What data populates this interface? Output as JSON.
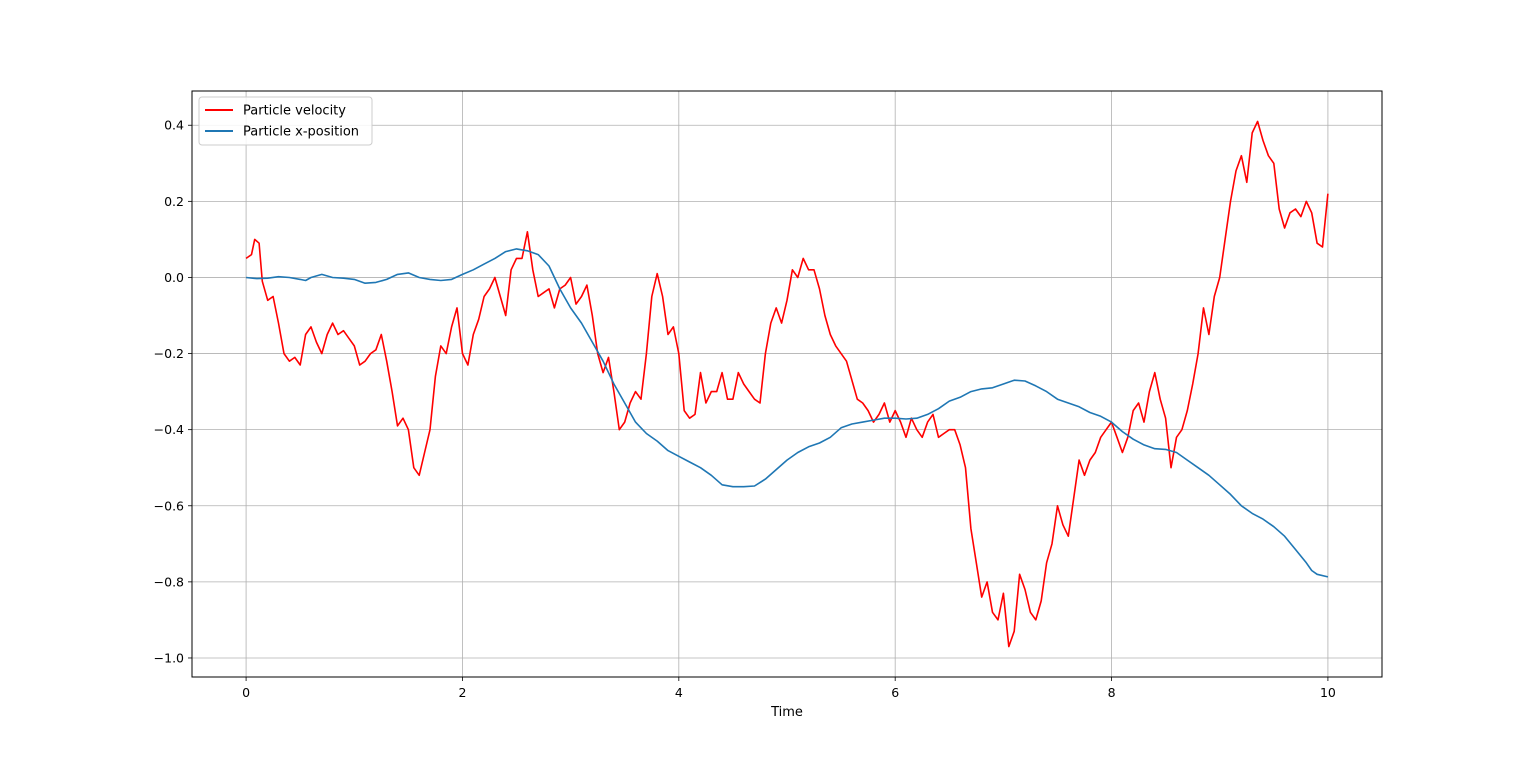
{
  "chart_data": {
    "type": "line",
    "title": "",
    "xlabel": "Time",
    "ylabel": "",
    "xlim": [
      -0.5,
      10.5
    ],
    "ylim": [
      -1.05,
      0.49
    ],
    "grid": true,
    "legend_position": "top-left",
    "xticks": [
      0,
      2,
      4,
      6,
      8,
      10
    ],
    "xtick_labels": [
      "0",
      "2",
      "4",
      "6",
      "8",
      "10"
    ],
    "yticks": [
      0.4,
      0.2,
      0.0,
      -0.2,
      -0.4,
      -0.6,
      -0.8,
      -1.0
    ],
    "ytick_labels": [
      "0.4",
      "0.2",
      "0.0",
      "−0.2",
      "−0.4",
      "−0.6",
      "−0.8",
      "−1.0"
    ],
    "series": [
      {
        "name": "Particle velocity",
        "color": "#ff0000",
        "points": [
          [
            0.0,
            0.05
          ],
          [
            0.05,
            0.06
          ],
          [
            0.08,
            0.1
          ],
          [
            0.12,
            0.09
          ],
          [
            0.15,
            -0.01
          ],
          [
            0.2,
            -0.06
          ],
          [
            0.25,
            -0.05
          ],
          [
            0.3,
            -0.12
          ],
          [
            0.35,
            -0.2
          ],
          [
            0.4,
            -0.22
          ],
          [
            0.45,
            -0.21
          ],
          [
            0.5,
            -0.23
          ],
          [
            0.55,
            -0.15
          ],
          [
            0.6,
            -0.13
          ],
          [
            0.65,
            -0.17
          ],
          [
            0.7,
            -0.2
          ],
          [
            0.75,
            -0.15
          ],
          [
            0.8,
            -0.12
          ],
          [
            0.85,
            -0.15
          ],
          [
            0.9,
            -0.14
          ],
          [
            0.95,
            -0.16
          ],
          [
            1.0,
            -0.18
          ],
          [
            1.05,
            -0.23
          ],
          [
            1.1,
            -0.22
          ],
          [
            1.15,
            -0.2
          ],
          [
            1.2,
            -0.19
          ],
          [
            1.25,
            -0.15
          ],
          [
            1.3,
            -0.22
          ],
          [
            1.35,
            -0.3
          ],
          [
            1.4,
            -0.39
          ],
          [
            1.45,
            -0.37
          ],
          [
            1.5,
            -0.4
          ],
          [
            1.55,
            -0.5
          ],
          [
            1.6,
            -0.52
          ],
          [
            1.65,
            -0.46
          ],
          [
            1.7,
            -0.4
          ],
          [
            1.75,
            -0.26
          ],
          [
            1.8,
            -0.18
          ],
          [
            1.85,
            -0.2
          ],
          [
            1.9,
            -0.13
          ],
          [
            1.95,
            -0.08
          ],
          [
            2.0,
            -0.2
          ],
          [
            2.05,
            -0.23
          ],
          [
            2.1,
            -0.15
          ],
          [
            2.15,
            -0.11
          ],
          [
            2.2,
            -0.05
          ],
          [
            2.25,
            -0.03
          ],
          [
            2.3,
            0.0
          ],
          [
            2.35,
            -0.05
          ],
          [
            2.4,
            -0.1
          ],
          [
            2.45,
            0.02
          ],
          [
            2.5,
            0.05
          ],
          [
            2.55,
            0.05
          ],
          [
            2.6,
            0.12
          ],
          [
            2.65,
            0.02
          ],
          [
            2.7,
            -0.05
          ],
          [
            2.75,
            -0.04
          ],
          [
            2.8,
            -0.03
          ],
          [
            2.85,
            -0.08
          ],
          [
            2.9,
            -0.03
          ],
          [
            2.95,
            -0.02
          ],
          [
            3.0,
            0.0
          ],
          [
            3.05,
            -0.07
          ],
          [
            3.1,
            -0.05
          ],
          [
            3.15,
            -0.02
          ],
          [
            3.2,
            -0.1
          ],
          [
            3.25,
            -0.2
          ],
          [
            3.3,
            -0.25
          ],
          [
            3.35,
            -0.21
          ],
          [
            3.4,
            -0.3
          ],
          [
            3.45,
            -0.4
          ],
          [
            3.5,
            -0.38
          ],
          [
            3.55,
            -0.33
          ],
          [
            3.6,
            -0.3
          ],
          [
            3.65,
            -0.32
          ],
          [
            3.7,
            -0.2
          ],
          [
            3.75,
            -0.05
          ],
          [
            3.8,
            0.01
          ],
          [
            3.85,
            -0.05
          ],
          [
            3.9,
            -0.15
          ],
          [
            3.95,
            -0.13
          ],
          [
            4.0,
            -0.2
          ],
          [
            4.05,
            -0.35
          ],
          [
            4.1,
            -0.37
          ],
          [
            4.15,
            -0.36
          ],
          [
            4.2,
            -0.25
          ],
          [
            4.25,
            -0.33
          ],
          [
            4.3,
            -0.3
          ],
          [
            4.35,
            -0.3
          ],
          [
            4.4,
            -0.25
          ],
          [
            4.45,
            -0.32
          ],
          [
            4.5,
            -0.32
          ],
          [
            4.55,
            -0.25
          ],
          [
            4.6,
            -0.28
          ],
          [
            4.65,
            -0.3
          ],
          [
            4.7,
            -0.32
          ],
          [
            4.75,
            -0.33
          ],
          [
            4.8,
            -0.2
          ],
          [
            4.85,
            -0.12
          ],
          [
            4.9,
            -0.08
          ],
          [
            4.95,
            -0.12
          ],
          [
            5.0,
            -0.06
          ],
          [
            5.05,
            0.02
          ],
          [
            5.1,
            0.0
          ],
          [
            5.15,
            0.05
          ],
          [
            5.2,
            0.02
          ],
          [
            5.25,
            0.02
          ],
          [
            5.3,
            -0.03
          ],
          [
            5.35,
            -0.1
          ],
          [
            5.4,
            -0.15
          ],
          [
            5.45,
            -0.18
          ],
          [
            5.5,
            -0.2
          ],
          [
            5.55,
            -0.22
          ],
          [
            5.6,
            -0.27
          ],
          [
            5.65,
            -0.32
          ],
          [
            5.7,
            -0.33
          ],
          [
            5.75,
            -0.35
          ],
          [
            5.8,
            -0.38
          ],
          [
            5.85,
            -0.36
          ],
          [
            5.9,
            -0.33
          ],
          [
            5.95,
            -0.38
          ],
          [
            6.0,
            -0.35
          ],
          [
            6.05,
            -0.38
          ],
          [
            6.1,
            -0.42
          ],
          [
            6.15,
            -0.37
          ],
          [
            6.2,
            -0.4
          ],
          [
            6.25,
            -0.42
          ],
          [
            6.3,
            -0.38
          ],
          [
            6.35,
            -0.36
          ],
          [
            6.4,
            -0.42
          ],
          [
            6.45,
            -0.41
          ],
          [
            6.5,
            -0.4
          ],
          [
            6.55,
            -0.4
          ],
          [
            6.6,
            -0.44
          ],
          [
            6.65,
            -0.5
          ],
          [
            6.7,
            -0.66
          ],
          [
            6.75,
            -0.75
          ],
          [
            6.8,
            -0.84
          ],
          [
            6.85,
            -0.8
          ],
          [
            6.9,
            -0.88
          ],
          [
            6.95,
            -0.9
          ],
          [
            7.0,
            -0.83
          ],
          [
            7.05,
            -0.97
          ],
          [
            7.1,
            -0.93
          ],
          [
            7.15,
            -0.78
          ],
          [
            7.2,
            -0.82
          ],
          [
            7.25,
            -0.88
          ],
          [
            7.3,
            -0.9
          ],
          [
            7.35,
            -0.85
          ],
          [
            7.4,
            -0.75
          ],
          [
            7.45,
            -0.7
          ],
          [
            7.5,
            -0.6
          ],
          [
            7.55,
            -0.65
          ],
          [
            7.6,
            -0.68
          ],
          [
            7.65,
            -0.58
          ],
          [
            7.7,
            -0.48
          ],
          [
            7.75,
            -0.52
          ],
          [
            7.8,
            -0.48
          ],
          [
            7.85,
            -0.46
          ],
          [
            7.9,
            -0.42
          ],
          [
            7.95,
            -0.4
          ],
          [
            8.0,
            -0.38
          ],
          [
            8.05,
            -0.42
          ],
          [
            8.1,
            -0.46
          ],
          [
            8.15,
            -0.42
          ],
          [
            8.2,
            -0.35
          ],
          [
            8.25,
            -0.33
          ],
          [
            8.3,
            -0.38
          ],
          [
            8.35,
            -0.3
          ],
          [
            8.4,
            -0.25
          ],
          [
            8.45,
            -0.32
          ],
          [
            8.5,
            -0.37
          ],
          [
            8.55,
            -0.5
          ],
          [
            8.6,
            -0.42
          ],
          [
            8.65,
            -0.4
          ],
          [
            8.7,
            -0.35
          ],
          [
            8.75,
            -0.28
          ],
          [
            8.8,
            -0.2
          ],
          [
            8.85,
            -0.08
          ],
          [
            8.9,
            -0.15
          ],
          [
            8.95,
            -0.05
          ],
          [
            9.0,
            0.0
          ],
          [
            9.05,
            0.1
          ],
          [
            9.1,
            0.2
          ],
          [
            9.15,
            0.28
          ],
          [
            9.2,
            0.32
          ],
          [
            9.25,
            0.25
          ],
          [
            9.3,
            0.38
          ],
          [
            9.35,
            0.41
          ],
          [
            9.4,
            0.36
          ],
          [
            9.45,
            0.32
          ],
          [
            9.5,
            0.3
          ],
          [
            9.55,
            0.18
          ],
          [
            9.6,
            0.13
          ],
          [
            9.65,
            0.17
          ],
          [
            9.7,
            0.18
          ],
          [
            9.75,
            0.16
          ],
          [
            9.8,
            0.2
          ],
          [
            9.85,
            0.17
          ],
          [
            9.9,
            0.09
          ],
          [
            9.95,
            0.08
          ],
          [
            10.0,
            0.22
          ]
        ]
      },
      {
        "name": "Particle x-position",
        "color": "#1f77b4",
        "points": [
          [
            0.0,
            0.0
          ],
          [
            0.1,
            -0.003
          ],
          [
            0.2,
            -0.002
          ],
          [
            0.3,
            0.002
          ],
          [
            0.4,
            0.0
          ],
          [
            0.5,
            -0.005
          ],
          [
            0.55,
            -0.008
          ],
          [
            0.6,
            0.0
          ],
          [
            0.7,
            0.008
          ],
          [
            0.8,
            0.0
          ],
          [
            0.9,
            -0.002
          ],
          [
            1.0,
            -0.005
          ],
          [
            1.1,
            -0.015
          ],
          [
            1.2,
            -0.013
          ],
          [
            1.3,
            -0.005
          ],
          [
            1.4,
            0.008
          ],
          [
            1.5,
            0.012
          ],
          [
            1.6,
            0.0
          ],
          [
            1.7,
            -0.005
          ],
          [
            1.8,
            -0.008
          ],
          [
            1.9,
            -0.005
          ],
          [
            2.0,
            0.008
          ],
          [
            2.1,
            0.02
          ],
          [
            2.2,
            0.035
          ],
          [
            2.3,
            0.05
          ],
          [
            2.4,
            0.068
          ],
          [
            2.5,
            0.075
          ],
          [
            2.6,
            0.07
          ],
          [
            2.7,
            0.06
          ],
          [
            2.8,
            0.03
          ],
          [
            2.9,
            -0.03
          ],
          [
            3.0,
            -0.08
          ],
          [
            3.1,
            -0.12
          ],
          [
            3.2,
            -0.17
          ],
          [
            3.3,
            -0.22
          ],
          [
            3.4,
            -0.28
          ],
          [
            3.5,
            -0.33
          ],
          [
            3.6,
            -0.38
          ],
          [
            3.7,
            -0.41
          ],
          [
            3.8,
            -0.43
          ],
          [
            3.9,
            -0.455
          ],
          [
            4.0,
            -0.47
          ],
          [
            4.1,
            -0.485
          ],
          [
            4.2,
            -0.5
          ],
          [
            4.3,
            -0.52
          ],
          [
            4.4,
            -0.545
          ],
          [
            4.5,
            -0.55
          ],
          [
            4.6,
            -0.55
          ],
          [
            4.7,
            -0.548
          ],
          [
            4.8,
            -0.53
          ],
          [
            4.9,
            -0.505
          ],
          [
            5.0,
            -0.48
          ],
          [
            5.1,
            -0.46
          ],
          [
            5.2,
            -0.445
          ],
          [
            5.3,
            -0.435
          ],
          [
            5.4,
            -0.42
          ],
          [
            5.5,
            -0.395
          ],
          [
            5.6,
            -0.385
          ],
          [
            5.7,
            -0.38
          ],
          [
            5.8,
            -0.375
          ],
          [
            5.9,
            -0.37
          ],
          [
            6.0,
            -0.37
          ],
          [
            6.1,
            -0.372
          ],
          [
            6.2,
            -0.37
          ],
          [
            6.3,
            -0.36
          ],
          [
            6.4,
            -0.345
          ],
          [
            6.5,
            -0.325
          ],
          [
            6.6,
            -0.315
          ],
          [
            6.7,
            -0.3
          ],
          [
            6.8,
            -0.293
          ],
          [
            6.9,
            -0.29
          ],
          [
            7.0,
            -0.28
          ],
          [
            7.1,
            -0.27
          ],
          [
            7.2,
            -0.272
          ],
          [
            7.3,
            -0.285
          ],
          [
            7.4,
            -0.3
          ],
          [
            7.5,
            -0.32
          ],
          [
            7.6,
            -0.33
          ],
          [
            7.7,
            -0.34
          ],
          [
            7.8,
            -0.355
          ],
          [
            7.9,
            -0.365
          ],
          [
            8.0,
            -0.38
          ],
          [
            8.1,
            -0.405
          ],
          [
            8.2,
            -0.425
          ],
          [
            8.3,
            -0.44
          ],
          [
            8.4,
            -0.45
          ],
          [
            8.5,
            -0.452
          ],
          [
            8.6,
            -0.46
          ],
          [
            8.7,
            -0.48
          ],
          [
            8.8,
            -0.5
          ],
          [
            8.9,
            -0.52
          ],
          [
            9.0,
            -0.545
          ],
          [
            9.1,
            -0.57
          ],
          [
            9.2,
            -0.6
          ],
          [
            9.3,
            -0.62
          ],
          [
            9.4,
            -0.635
          ],
          [
            9.5,
            -0.655
          ],
          [
            9.6,
            -0.68
          ],
          [
            9.7,
            -0.715
          ],
          [
            9.8,
            -0.75
          ],
          [
            9.85,
            -0.77
          ],
          [
            9.9,
            -0.78
          ],
          [
            10.0,
            -0.787
          ]
        ]
      }
    ]
  }
}
